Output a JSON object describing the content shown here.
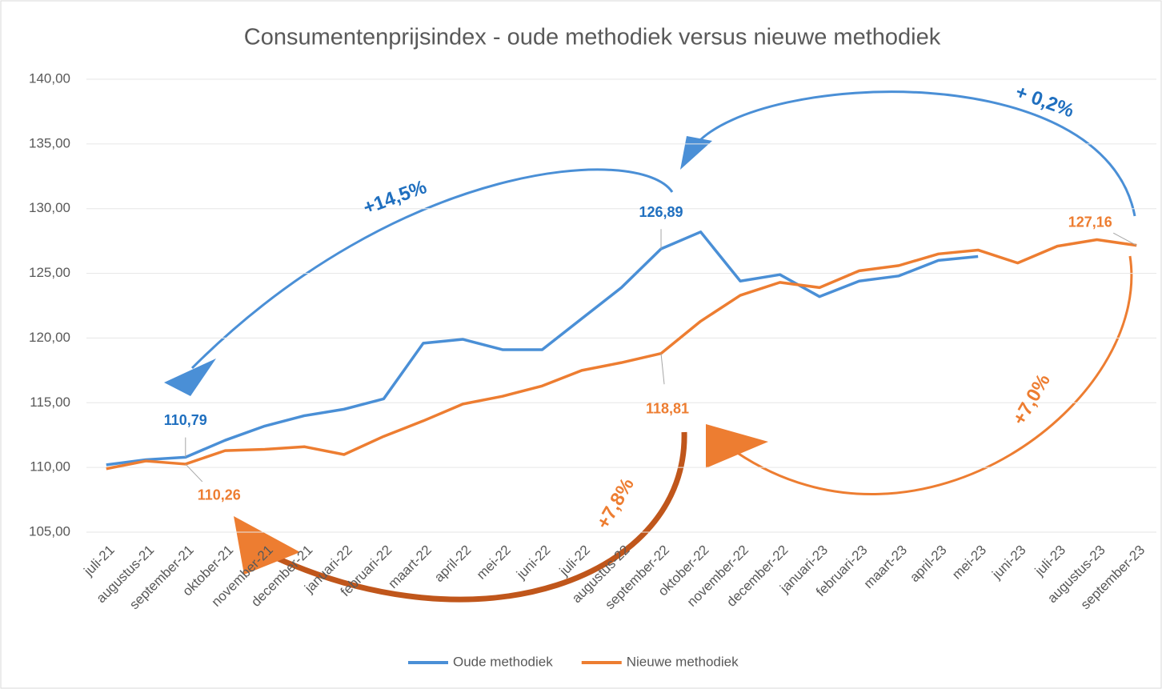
{
  "chart_data": {
    "type": "line",
    "title": "Consumentenprijsindex - oude methodiek versus nieuwe methodiek",
    "categories": [
      "juli-21",
      "augustus-21",
      "september-21",
      "oktober-21",
      "november-21",
      "december-21",
      "januari-22",
      "februari-22",
      "maart-22",
      "april-22",
      "mei-22",
      "juni-22",
      "juli-22",
      "augustus-22",
      "september-22",
      "oktober-22",
      "november-22",
      "december-22",
      "januari-23",
      "februari-23",
      "maart-23",
      "april-23",
      "mei-23",
      "juni-23",
      "juli-23",
      "augustus-23",
      "september-23"
    ],
    "series": [
      {
        "name": "Oude methodiek",
        "color": "#4a8fd6",
        "values": [
          110.2,
          110.6,
          110.79,
          112.1,
          113.2,
          114.0,
          114.5,
          115.3,
          119.6,
          119.9,
          119.1,
          119.1,
          121.5,
          123.9,
          126.89,
          128.2,
          124.4,
          124.9,
          123.2,
          124.4,
          124.8,
          126.0,
          126.3,
          null,
          null,
          null,
          null
        ],
        "value_labels": [
          null,
          null,
          "110,79",
          null,
          null,
          null,
          null,
          null,
          null,
          null,
          null,
          null,
          null,
          null,
          "126,89",
          null,
          null,
          null,
          null,
          null,
          null,
          null,
          null,
          null,
          null,
          null,
          null
        ]
      },
      {
        "name": "Nieuwe methodiek",
        "color": "#ed7d31",
        "values": [
          109.9,
          110.5,
          110.26,
          111.3,
          111.4,
          111.6,
          111.0,
          112.4,
          113.6,
          114.9,
          115.5,
          116.3,
          117.5,
          118.1,
          118.81,
          121.3,
          123.3,
          124.3,
          123.9,
          125.2,
          125.6,
          126.5,
          126.8,
          125.8,
          127.1,
          127.6,
          127.16
        ],
        "value_labels": [
          null,
          null,
          "110,26",
          null,
          null,
          null,
          null,
          null,
          null,
          null,
          null,
          null,
          null,
          null,
          "118,81",
          null,
          null,
          null,
          null,
          null,
          null,
          null,
          null,
          null,
          null,
          null,
          "127,16"
        ]
      }
    ],
    "ylim": [
      105,
      140
    ],
    "yticks": [
      {
        "value": 105,
        "label": "105,00"
      },
      {
        "value": 110,
        "label": "110,00"
      },
      {
        "value": 115,
        "label": "115,00"
      },
      {
        "value": 120,
        "label": "120,00"
      },
      {
        "value": 125,
        "label": "125,00"
      },
      {
        "value": 130,
        "label": "130,00"
      },
      {
        "value": 135,
        "label": "135,00"
      },
      {
        "value": 140,
        "label": "140,00"
      }
    ],
    "grid": true,
    "legend": "bottom",
    "annotations": [
      "+14,5%",
      "+ 0,2%",
      "+7,8%",
      "+7,0%"
    ]
  }
}
